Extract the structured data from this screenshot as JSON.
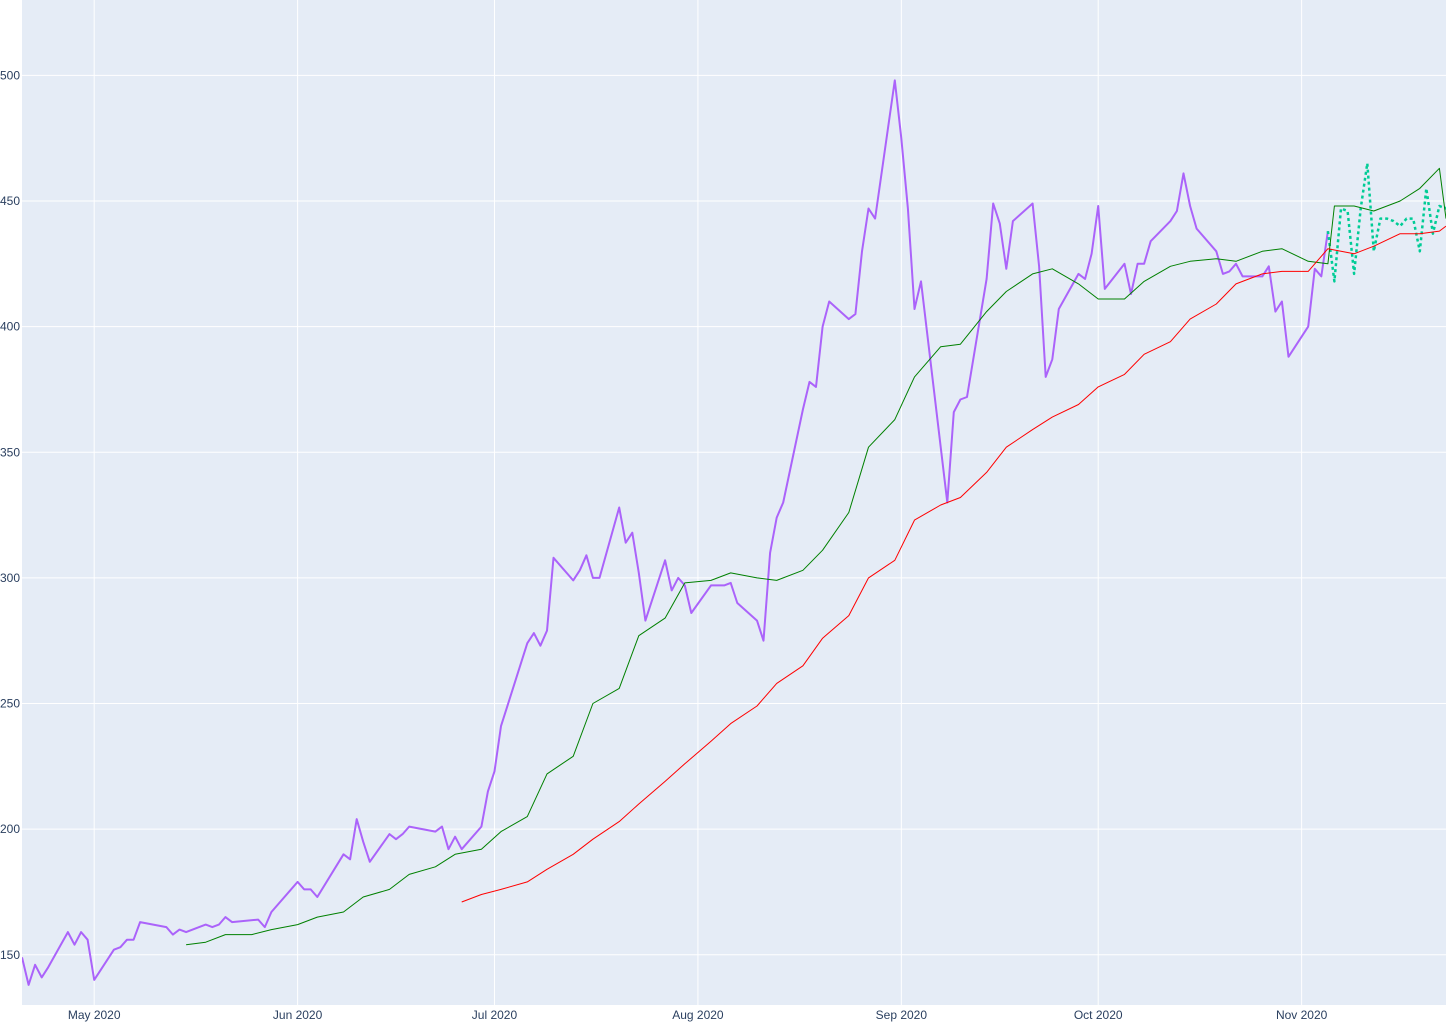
{
  "chart_data": {
    "type": "line",
    "title": "",
    "xlabel": "",
    "ylabel": "",
    "xlim": [
      "2020-04-20",
      "2020-11-23"
    ],
    "ylim": [
      130,
      530
    ],
    "grid": true,
    "legend": "none",
    "x_ticks": [
      {
        "date": "2020-05-01",
        "label": "May 2020"
      },
      {
        "date": "2020-06-01",
        "label": "Jun 2020"
      },
      {
        "date": "2020-07-01",
        "label": "Jul 2020"
      },
      {
        "date": "2020-08-01",
        "label": "Aug 2020"
      },
      {
        "date": "2020-09-01",
        "label": "Sep 2020"
      },
      {
        "date": "2020-10-01",
        "label": "Oct 2020"
      },
      {
        "date": "2020-11-01",
        "label": "Nov 2020"
      }
    ],
    "y_ticks": [
      150,
      200,
      250,
      300,
      350,
      400,
      450,
      500
    ],
    "series": [
      {
        "color": "#ab63fa",
        "style": "solid",
        "points": [
          [
            "2020-04-20",
            149
          ],
          [
            "2020-04-21",
            138
          ],
          [
            "2020-04-22",
            146
          ],
          [
            "2020-04-23",
            141
          ],
          [
            "2020-04-24",
            145
          ],
          [
            "2020-04-27",
            159
          ],
          [
            "2020-04-28",
            154
          ],
          [
            "2020-04-29",
            159
          ],
          [
            "2020-04-30",
            156
          ],
          [
            "2020-05-01",
            140
          ],
          [
            "2020-05-04",
            152
          ],
          [
            "2020-05-05",
            153
          ],
          [
            "2020-05-06",
            156
          ],
          [
            "2020-05-07",
            156
          ],
          [
            "2020-05-08",
            163
          ],
          [
            "2020-05-12",
            161
          ],
          [
            "2020-05-13",
            158
          ],
          [
            "2020-05-14",
            160
          ],
          [
            "2020-05-15",
            159
          ],
          [
            "2020-05-18",
            162
          ],
          [
            "2020-05-19",
            161
          ],
          [
            "2020-05-20",
            162
          ],
          [
            "2020-05-21",
            165
          ],
          [
            "2020-05-22",
            163
          ],
          [
            "2020-05-26",
            164
          ],
          [
            "2020-05-27",
            161
          ],
          [
            "2020-05-28",
            167
          ],
          [
            "2020-06-01",
            179
          ],
          [
            "2020-06-02",
            176
          ],
          [
            "2020-06-03",
            176
          ],
          [
            "2020-06-04",
            173
          ],
          [
            "2020-06-08",
            190
          ],
          [
            "2020-06-09",
            188
          ],
          [
            "2020-06-10",
            204
          ],
          [
            "2020-06-11",
            195
          ],
          [
            "2020-06-12",
            187
          ],
          [
            "2020-06-15",
            198
          ],
          [
            "2020-06-16",
            196
          ],
          [
            "2020-06-17",
            198
          ],
          [
            "2020-06-18",
            201
          ],
          [
            "2020-06-22",
            199
          ],
          [
            "2020-06-23",
            201
          ],
          [
            "2020-06-24",
            192
          ],
          [
            "2020-06-25",
            197
          ],
          [
            "2020-06-26",
            192
          ],
          [
            "2020-06-29",
            201
          ],
          [
            "2020-06-30",
            215
          ],
          [
            "2020-07-01",
            223
          ],
          [
            "2020-07-02",
            241
          ],
          [
            "2020-07-06",
            274
          ],
          [
            "2020-07-07",
            278
          ],
          [
            "2020-07-08",
            273
          ],
          [
            "2020-07-09",
            279
          ],
          [
            "2020-07-10",
            308
          ],
          [
            "2020-07-13",
            299
          ],
          [
            "2020-07-14",
            303
          ],
          [
            "2020-07-15",
            309
          ],
          [
            "2020-07-16",
            300
          ],
          [
            "2020-07-17",
            300
          ],
          [
            "2020-07-20",
            328
          ],
          [
            "2020-07-21",
            314
          ],
          [
            "2020-07-22",
            318
          ],
          [
            "2020-07-23",
            302
          ],
          [
            "2020-07-24",
            283
          ],
          [
            "2020-07-27",
            307
          ],
          [
            "2020-07-28",
            295
          ],
          [
            "2020-07-29",
            300
          ],
          [
            "2020-07-30",
            297
          ],
          [
            "2020-07-31",
            286
          ],
          [
            "2020-08-03",
            297
          ],
          [
            "2020-08-04",
            297
          ],
          [
            "2020-08-05",
            297
          ],
          [
            "2020-08-06",
            298
          ],
          [
            "2020-08-07",
            290
          ],
          [
            "2020-08-10",
            283
          ],
          [
            "2020-08-11",
            275
          ],
          [
            "2020-08-12",
            310
          ],
          [
            "2020-08-13",
            324
          ],
          [
            "2020-08-14",
            330
          ],
          [
            "2020-08-17",
            367
          ],
          [
            "2020-08-18",
            378
          ],
          [
            "2020-08-19",
            376
          ],
          [
            "2020-08-20",
            400
          ],
          [
            "2020-08-21",
            410
          ],
          [
            "2020-08-24",
            403
          ],
          [
            "2020-08-25",
            405
          ],
          [
            "2020-08-26",
            430
          ],
          [
            "2020-08-27",
            447
          ],
          [
            "2020-08-28",
            443
          ],
          [
            "2020-08-31",
            498
          ],
          [
            "2020-09-01",
            475
          ],
          [
            "2020-09-02",
            447
          ],
          [
            "2020-09-03",
            407
          ],
          [
            "2020-09-04",
            418
          ],
          [
            "2020-09-08",
            330
          ],
          [
            "2020-09-09",
            366
          ],
          [
            "2020-09-10",
            371
          ],
          [
            "2020-09-11",
            372
          ],
          [
            "2020-09-14",
            419
          ],
          [
            "2020-09-15",
            449
          ],
          [
            "2020-09-16",
            441
          ],
          [
            "2020-09-17",
            423
          ],
          [
            "2020-09-18",
            442
          ],
          [
            "2020-09-21",
            449
          ],
          [
            "2020-09-22",
            424
          ],
          [
            "2020-09-23",
            380
          ],
          [
            "2020-09-24",
            387
          ],
          [
            "2020-09-25",
            407
          ],
          [
            "2020-09-28",
            421
          ],
          [
            "2020-09-29",
            419
          ],
          [
            "2020-09-30",
            429
          ],
          [
            "2020-10-01",
            448
          ],
          [
            "2020-10-02",
            415
          ],
          [
            "2020-10-05",
            425
          ],
          [
            "2020-10-06",
            413
          ],
          [
            "2020-10-07",
            425
          ],
          [
            "2020-10-08",
            425
          ],
          [
            "2020-10-09",
            434
          ],
          [
            "2020-10-12",
            442
          ],
          [
            "2020-10-13",
            446
          ],
          [
            "2020-10-14",
            461
          ],
          [
            "2020-10-15",
            448
          ],
          [
            "2020-10-16",
            439
          ],
          [
            "2020-10-19",
            430
          ],
          [
            "2020-10-20",
            421
          ],
          [
            "2020-10-21",
            422
          ],
          [
            "2020-10-22",
            425
          ],
          [
            "2020-10-23",
            420
          ],
          [
            "2020-10-26",
            420
          ],
          [
            "2020-10-27",
            424
          ],
          [
            "2020-10-28",
            406
          ],
          [
            "2020-10-29",
            410
          ],
          [
            "2020-10-30",
            388
          ],
          [
            "2020-11-02",
            400
          ],
          [
            "2020-11-03",
            423
          ],
          [
            "2020-11-04",
            420
          ],
          [
            "2020-11-05",
            438
          ]
        ]
      },
      {
        "color": "#00cc96",
        "style": "dotted",
        "points": [
          [
            "2020-11-05",
            438
          ],
          [
            "2020-11-06",
            418
          ],
          [
            "2020-11-07",
            447
          ],
          [
            "2020-11-08",
            446
          ],
          [
            "2020-11-09",
            421
          ],
          [
            "2020-11-10",
            447
          ],
          [
            "2020-11-11",
            465
          ],
          [
            "2020-11-12",
            430
          ],
          [
            "2020-11-13",
            443
          ],
          [
            "2020-11-14",
            443
          ],
          [
            "2020-11-15",
            442
          ],
          [
            "2020-11-16",
            440
          ],
          [
            "2020-11-17",
            443
          ],
          [
            "2020-11-18",
            443
          ],
          [
            "2020-11-19",
            430
          ],
          [
            "2020-11-20",
            455
          ],
          [
            "2020-11-21",
            437
          ],
          [
            "2020-11-22",
            448
          ],
          [
            "2020-11-23",
            447
          ],
          [
            "2020-11-24",
            452
          ]
        ]
      },
      {
        "color": "#008000",
        "style": "solid",
        "points": [
          [
            "2020-05-15",
            154
          ],
          [
            "2020-05-18",
            155
          ],
          [
            "2020-05-21",
            158
          ],
          [
            "2020-05-25",
            158
          ],
          [
            "2020-05-28",
            160
          ],
          [
            "2020-06-01",
            162
          ],
          [
            "2020-06-04",
            165
          ],
          [
            "2020-06-08",
            167
          ],
          [
            "2020-06-11",
            173
          ],
          [
            "2020-06-15",
            176
          ],
          [
            "2020-06-18",
            182
          ],
          [
            "2020-06-22",
            185
          ],
          [
            "2020-06-25",
            190
          ],
          [
            "2020-06-29",
            192
          ],
          [
            "2020-07-02",
            199
          ],
          [
            "2020-07-06",
            205
          ],
          [
            "2020-07-09",
            222
          ],
          [
            "2020-07-13",
            229
          ],
          [
            "2020-07-16",
            250
          ],
          [
            "2020-07-20",
            256
          ],
          [
            "2020-07-23",
            277
          ],
          [
            "2020-07-27",
            284
          ],
          [
            "2020-07-30",
            298
          ],
          [
            "2020-08-03",
            299
          ],
          [
            "2020-08-06",
            302
          ],
          [
            "2020-08-10",
            300
          ],
          [
            "2020-08-13",
            299
          ],
          [
            "2020-08-17",
            303
          ],
          [
            "2020-08-20",
            311
          ],
          [
            "2020-08-24",
            326
          ],
          [
            "2020-08-27",
            352
          ],
          [
            "2020-08-31",
            363
          ],
          [
            "2020-09-03",
            380
          ],
          [
            "2020-09-07",
            392
          ],
          [
            "2020-09-10",
            393
          ],
          [
            "2020-09-14",
            406
          ],
          [
            "2020-09-17",
            414
          ],
          [
            "2020-09-21",
            421
          ],
          [
            "2020-09-24",
            423
          ],
          [
            "2020-09-28",
            417
          ],
          [
            "2020-10-01",
            411
          ],
          [
            "2020-10-05",
            411
          ],
          [
            "2020-10-08",
            418
          ],
          [
            "2020-10-12",
            424
          ],
          [
            "2020-10-15",
            426
          ],
          [
            "2020-10-19",
            427
          ],
          [
            "2020-10-22",
            426
          ],
          [
            "2020-10-26",
            430
          ],
          [
            "2020-10-29",
            431
          ],
          [
            "2020-11-02",
            426
          ],
          [
            "2020-11-05",
            425
          ],
          [
            "2020-11-06",
            448
          ],
          [
            "2020-11-09",
            448
          ],
          [
            "2020-11-12",
            446
          ],
          [
            "2020-11-16",
            450
          ],
          [
            "2020-11-19",
            455
          ],
          [
            "2020-11-22",
            463
          ],
          [
            "2020-11-23",
            443
          ]
        ]
      },
      {
        "color": "#ff0000",
        "style": "solid",
        "points": [
          [
            "2020-06-26",
            171
          ],
          [
            "2020-06-29",
            174
          ],
          [
            "2020-07-02",
            176
          ],
          [
            "2020-07-06",
            179
          ],
          [
            "2020-07-09",
            184
          ],
          [
            "2020-07-13",
            190
          ],
          [
            "2020-07-16",
            196
          ],
          [
            "2020-07-20",
            203
          ],
          [
            "2020-07-23",
            210
          ],
          [
            "2020-07-27",
            219
          ],
          [
            "2020-07-30",
            226
          ],
          [
            "2020-08-03",
            235
          ],
          [
            "2020-08-06",
            242
          ],
          [
            "2020-08-10",
            249
          ],
          [
            "2020-08-13",
            258
          ],
          [
            "2020-08-17",
            265
          ],
          [
            "2020-08-20",
            276
          ],
          [
            "2020-08-24",
            285
          ],
          [
            "2020-08-27",
            300
          ],
          [
            "2020-08-31",
            307
          ],
          [
            "2020-09-03",
            323
          ],
          [
            "2020-09-07",
            329
          ],
          [
            "2020-09-10",
            332
          ],
          [
            "2020-09-14",
            342
          ],
          [
            "2020-09-17",
            352
          ],
          [
            "2020-09-21",
            359
          ],
          [
            "2020-09-24",
            364
          ],
          [
            "2020-09-28",
            369
          ],
          [
            "2020-10-01",
            376
          ],
          [
            "2020-10-05",
            381
          ],
          [
            "2020-10-08",
            389
          ],
          [
            "2020-10-12",
            394
          ],
          [
            "2020-10-15",
            403
          ],
          [
            "2020-10-19",
            409
          ],
          [
            "2020-10-22",
            417
          ],
          [
            "2020-10-26",
            421
          ],
          [
            "2020-10-29",
            422
          ],
          [
            "2020-11-02",
            422
          ],
          [
            "2020-11-05",
            431
          ],
          [
            "2020-11-09",
            429
          ],
          [
            "2020-11-12",
            432
          ],
          [
            "2020-11-16",
            437
          ],
          [
            "2020-11-19",
            437
          ],
          [
            "2020-11-22",
            438
          ],
          [
            "2020-11-23",
            440
          ]
        ]
      }
    ]
  }
}
